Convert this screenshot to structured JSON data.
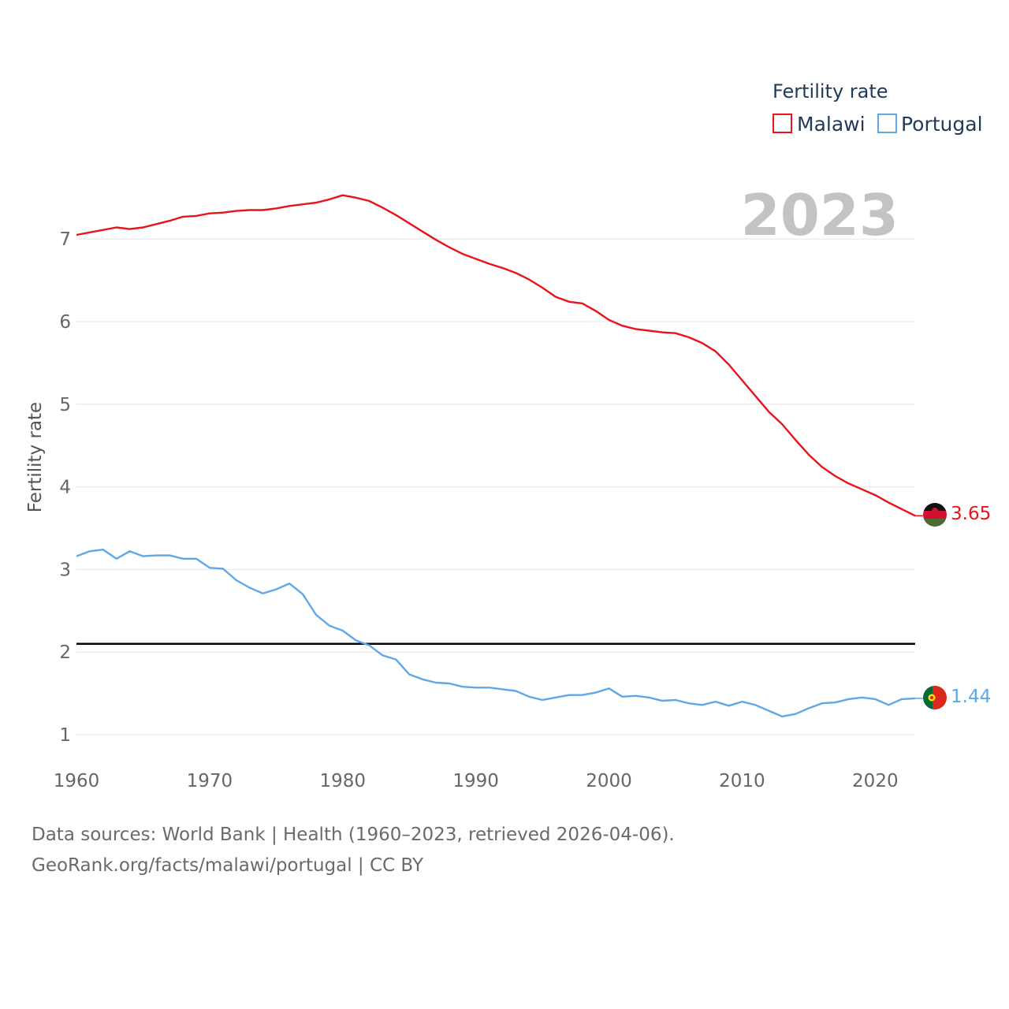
{
  "chart_data": {
    "type": "line",
    "year_stamp": "2023",
    "legend_title": "Fertility rate",
    "ylabel": "Fertility rate",
    "xlabel": "",
    "xlim": [
      1960,
      2023
    ],
    "ylim": [
      0.85,
      7.7
    ],
    "x_ticks": [
      1960,
      1970,
      1980,
      1990,
      2000,
      2010,
      2020
    ],
    "y_ticks": [
      1,
      2,
      3,
      4,
      5,
      6,
      7
    ],
    "reference_line": {
      "y": 2.1,
      "color": "#000000"
    },
    "x": [
      1960,
      1961,
      1962,
      1963,
      1964,
      1965,
      1966,
      1967,
      1968,
      1969,
      1970,
      1971,
      1972,
      1973,
      1974,
      1975,
      1976,
      1977,
      1978,
      1979,
      1980,
      1981,
      1982,
      1983,
      1984,
      1985,
      1986,
      1987,
      1988,
      1989,
      1990,
      1991,
      1992,
      1993,
      1994,
      1995,
      1996,
      1997,
      1998,
      1999,
      2000,
      2001,
      2002,
      2003,
      2004,
      2005,
      2006,
      2007,
      2008,
      2009,
      2010,
      2011,
      2012,
      2013,
      2014,
      2015,
      2016,
      2017,
      2018,
      2019,
      2020,
      2021,
      2022,
      2023
    ],
    "series": [
      {
        "name": "Malawi",
        "color": "#e8141a",
        "end_label": "3.65",
        "values": [
          7.05,
          7.08,
          7.11,
          7.14,
          7.12,
          7.14,
          7.18,
          7.22,
          7.27,
          7.28,
          7.31,
          7.32,
          7.34,
          7.35,
          7.35,
          7.37,
          7.4,
          7.42,
          7.44,
          7.48,
          7.53,
          7.5,
          7.46,
          7.38,
          7.29,
          7.19,
          7.09,
          6.99,
          6.9,
          6.82,
          6.76,
          6.7,
          6.65,
          6.59,
          6.51,
          6.41,
          6.3,
          6.24,
          6.22,
          6.13,
          6.02,
          5.95,
          5.91,
          5.89,
          5.87,
          5.86,
          5.81,
          5.74,
          5.64,
          5.48,
          5.29,
          5.1,
          4.91,
          4.76,
          4.57,
          4.39,
          4.24,
          4.13,
          4.04,
          3.97,
          3.9,
          3.81,
          3.73,
          3.65
        ]
      },
      {
        "name": "Portugal",
        "color": "#5fa8e8",
        "end_label": "1.44",
        "values": [
          3.16,
          3.22,
          3.24,
          3.13,
          3.22,
          3.16,
          3.17,
          3.17,
          3.13,
          3.13,
          3.02,
          3.01,
          2.87,
          2.78,
          2.71,
          2.76,
          2.83,
          2.7,
          2.45,
          2.32,
          2.26,
          2.14,
          2.08,
          1.96,
          1.91,
          1.73,
          1.67,
          1.63,
          1.62,
          1.58,
          1.57,
          1.57,
          1.55,
          1.53,
          1.46,
          1.42,
          1.45,
          1.48,
          1.48,
          1.51,
          1.56,
          1.46,
          1.47,
          1.45,
          1.41,
          1.42,
          1.38,
          1.36,
          1.4,
          1.35,
          1.4,
          1.36,
          1.29,
          1.22,
          1.25,
          1.32,
          1.38,
          1.39,
          1.43,
          1.45,
          1.43,
          1.36,
          1.43,
          1.44
        ]
      }
    ]
  },
  "source": {
    "line1": "Data sources: World Bank | Health (1960–2023, retrieved 2026-04-06).",
    "line2": "GeoRank.org/facts/malawi/portugal | CC BY"
  }
}
